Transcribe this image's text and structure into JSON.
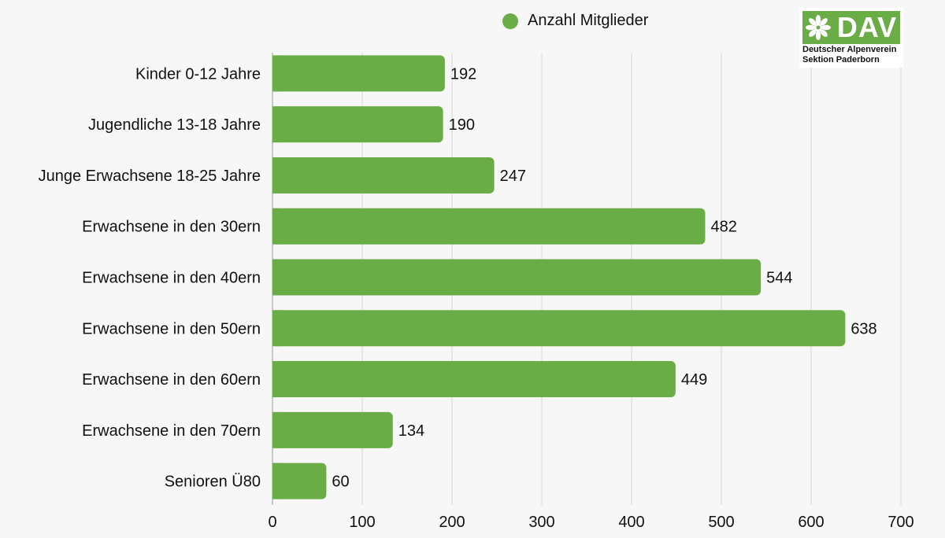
{
  "legend": {
    "label": "Anzahl Mitglieder",
    "color": "#6aad46",
    "icon": "circle-icon"
  },
  "logo": {
    "word": "DAV",
    "line1": "Deutscher Alpenverein",
    "line2": "Sektion Paderborn",
    "color": "#6aad46",
    "icon": "edelweiss-icon"
  },
  "chart_data": {
    "type": "bar",
    "orientation": "horizontal",
    "categories": [
      "Kinder 0-12 Jahre",
      "Jugendliche 13-18 Jahre",
      "Junge Erwachsene 18-25 Jahre",
      "Erwachsene in den 30ern",
      "Erwachsene in den 40ern",
      "Erwachsene in den 50ern",
      "Erwachsene in den 60ern",
      "Erwachsene in den 70ern",
      "Senioren Ü80"
    ],
    "series": [
      {
        "name": "Anzahl Mitglieder",
        "values": [
          192,
          190,
          247,
          482,
          544,
          638,
          449,
          134,
          60
        ],
        "color": "#6aad46"
      }
    ],
    "xlim": [
      0,
      700
    ],
    "xticks": [
      0,
      100,
      200,
      300,
      400,
      500,
      600,
      700
    ],
    "grid": true,
    "legend_position": "top"
  }
}
